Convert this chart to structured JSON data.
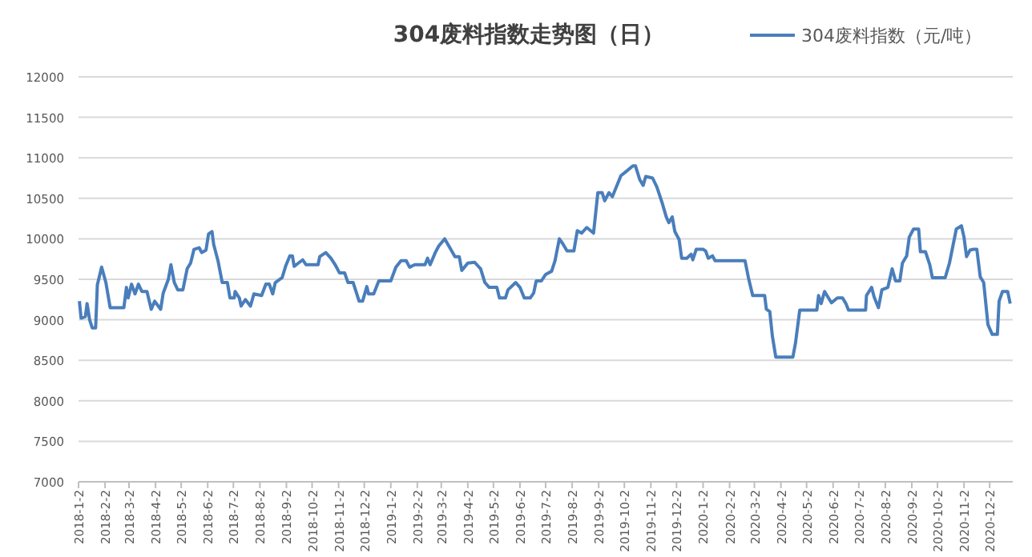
{
  "chart_data": {
    "type": "line",
    "title": "304废料指数走势图（日）",
    "x": [
      "2018-01-03",
      "2018-01-05",
      "2018-01-10",
      "2018-01-12",
      "2018-01-15",
      "2018-01-18",
      "2018-01-22",
      "2018-01-24",
      "2018-01-29",
      "2018-02-03",
      "2018-02-08",
      "2018-02-24",
      "2018-02-27",
      "2018-03-01",
      "2018-03-05",
      "2018-03-09",
      "2018-03-13",
      "2018-03-17",
      "2018-03-23",
      "2018-03-28",
      "2018-04-01",
      "2018-04-08",
      "2018-04-11",
      "2018-04-17",
      "2018-04-20",
      "2018-04-24",
      "2018-04-28",
      "2018-05-04",
      "2018-05-09",
      "2018-05-13",
      "2018-05-17",
      "2018-05-23",
      "2018-05-26",
      "2018-05-31",
      "2018-06-03",
      "2018-06-07",
      "2018-06-09",
      "2018-06-14",
      "2018-06-19",
      "2018-06-25",
      "2018-06-28",
      "2018-07-03",
      "2018-07-04",
      "2018-07-09",
      "2018-07-11",
      "2018-07-16",
      "2018-07-22",
      "2018-07-26",
      "2018-08-04",
      "2018-08-09",
      "2018-08-13",
      "2018-08-17",
      "2018-08-20",
      "2018-08-28",
      "2018-09-01",
      "2018-09-06",
      "2018-09-09",
      "2018-09-11",
      "2018-09-16",
      "2018-09-21",
      "2018-09-25",
      "2018-10-09",
      "2018-10-11",
      "2018-10-18",
      "2018-10-24",
      "2018-10-29",
      "2018-11-03",
      "2018-11-09",
      "2018-11-13",
      "2018-11-19",
      "2018-11-26",
      "2018-11-30",
      "2018-12-05",
      "2018-12-07",
      "2018-12-13",
      "2018-12-19",
      "2018-12-25",
      "2019-01-02",
      "2019-01-08",
      "2019-01-14",
      "2019-01-20",
      "2019-01-24",
      "2019-01-30",
      "2019-02-11",
      "2019-02-14",
      "2019-02-17",
      "2019-02-23",
      "2019-02-27",
      "2019-03-06",
      "2019-03-12",
      "2019-03-18",
      "2019-03-23",
      "2019-03-26",
      "2019-04-02",
      "2019-04-10",
      "2019-04-17",
      "2019-04-22",
      "2019-04-27",
      "2019-05-06",
      "2019-05-09",
      "2019-05-16",
      "2019-05-19",
      "2019-05-28",
      "2019-06-02",
      "2019-06-07",
      "2019-06-14",
      "2019-06-18",
      "2019-06-21",
      "2019-06-27",
      "2019-07-02",
      "2019-07-09",
      "2019-07-13",
      "2019-07-18",
      "2019-07-22",
      "2019-07-27",
      "2019-08-04",
      "2019-08-08",
      "2019-08-13",
      "2019-08-19",
      "2019-08-27",
      "2019-09-01",
      "2019-09-06",
      "2019-09-09",
      "2019-09-14",
      "2019-09-18",
      "2019-09-28",
      "2019-10-04",
      "2019-10-12",
      "2019-10-15",
      "2019-10-20",
      "2019-10-24",
      "2019-10-27",
      "2019-11-04",
      "2019-11-09",
      "2019-11-15",
      "2019-11-20",
      "2019-11-23",
      "2019-11-27",
      "2019-11-30",
      "2019-12-05",
      "2019-12-08",
      "2019-12-14",
      "2019-12-19",
      "2019-12-21",
      "2019-12-25",
      "2020-01-02",
      "2020-01-05",
      "2020-01-08",
      "2020-01-13",
      "2020-01-16",
      "2020-02-20",
      "2020-02-24",
      "2020-02-29",
      "2020-03-14",
      "2020-03-16",
      "2020-03-20",
      "2020-03-23",
      "2020-03-27",
      "2020-04-16",
      "2020-04-19",
      "2020-04-24",
      "2020-05-14",
      "2020-05-16",
      "2020-05-19",
      "2020-05-23",
      "2020-05-31",
      "2020-06-07",
      "2020-06-13",
      "2020-06-17",
      "2020-06-20",
      "2020-07-10",
      "2020-07-11",
      "2020-07-17",
      "2020-07-20",
      "2020-07-25",
      "2020-07-29",
      "2020-08-05",
      "2020-08-10",
      "2020-08-14",
      "2020-08-19",
      "2020-08-22",
      "2020-08-27",
      "2020-08-30",
      "2020-09-04",
      "2020-09-10",
      "2020-09-12",
      "2020-09-18",
      "2020-09-23",
      "2020-09-26",
      "2020-10-11",
      "2020-10-16",
      "2020-10-24",
      "2020-10-30",
      "2020-11-02",
      "2020-11-05",
      "2020-11-09",
      "2020-11-13",
      "2020-11-17",
      "2020-11-21",
      "2020-11-25",
      "2020-11-30",
      "2020-12-05",
      "2020-12-11",
      "2020-12-13",
      "2020-12-17",
      "2020-12-23",
      "2020-12-26"
    ],
    "series": [
      {
        "name": "304废料指数（元/吨）",
        "color": "#4a7ebb",
        "values": [
          9230,
          9020,
          9040,
          9200,
          9000,
          8900,
          8900,
          9430,
          9650,
          9460,
          9150,
          9150,
          9400,
          9270,
          9440,
          9320,
          9440,
          9350,
          9350,
          9130,
          9230,
          9130,
          9330,
          9500,
          9680,
          9460,
          9370,
          9370,
          9630,
          9700,
          9870,
          9890,
          9830,
          9860,
          10060,
          10090,
          9930,
          9730,
          9460,
          9460,
          9270,
          9270,
          9350,
          9270,
          9170,
          9250,
          9170,
          9320,
          9300,
          9440,
          9440,
          9320,
          9460,
          9520,
          9660,
          9790,
          9790,
          9660,
          9700,
          9740,
          9680,
          9680,
          9780,
          9830,
          9760,
          9680,
          9580,
          9580,
          9460,
          9460,
          9230,
          9230,
          9410,
          9320,
          9320,
          9480,
          9480,
          9480,
          9650,
          9730,
          9730,
          9650,
          9680,
          9680,
          9760,
          9680,
          9830,
          9910,
          10000,
          9890,
          9780,
          9780,
          9610,
          9700,
          9710,
          9630,
          9460,
          9400,
          9400,
          9270,
          9270,
          9370,
          9460,
          9400,
          9270,
          9270,
          9330,
          9480,
          9480,
          9560,
          9600,
          9730,
          10000,
          9940,
          9850,
          9850,
          10100,
          10070,
          10140,
          10070,
          10570,
          10570,
          10470,
          10570,
          10520,
          10780,
          10830,
          10900,
          10900,
          10730,
          10660,
          10770,
          10750,
          10640,
          10450,
          10270,
          10200,
          10270,
          10090,
          9990,
          9760,
          9760,
          9810,
          9740,
          9870,
          9870,
          9850,
          9760,
          9790,
          9730,
          9730,
          9520,
          9300,
          9300,
          9130,
          9100,
          8800,
          8540,
          8540,
          8710,
          9120,
          9120,
          9300,
          9200,
          9350,
          9210,
          9270,
          9270,
          9200,
          9120,
          9120,
          9300,
          9400,
          9280,
          9150,
          9370,
          9400,
          9630,
          9480,
          9480,
          9700,
          9790,
          10020,
          10120,
          10120,
          9840,
          9840,
          9680,
          9520,
          9520,
          9700,
          10120,
          10160,
          10020,
          9780,
          9860,
          9870,
          9870,
          9530,
          9460,
          8940,
          8820,
          8820,
          9230,
          9350,
          9350,
          9200
        ]
      }
    ],
    "xlim": [
      "2018-01-02",
      "2020-12-29"
    ],
    "xticks": [
      {
        "value": "2018-01-02",
        "label": "2018-1-2"
      },
      {
        "value": "2018-02-02",
        "label": "2018-2-2"
      },
      {
        "value": "2018-03-02",
        "label": "2018-3-2"
      },
      {
        "value": "2018-04-02",
        "label": "2018-4-2"
      },
      {
        "value": "2018-05-02",
        "label": "2018-5-2"
      },
      {
        "value": "2018-06-02",
        "label": "2018-6-2"
      },
      {
        "value": "2018-07-02",
        "label": "2018-7-2"
      },
      {
        "value": "2018-08-02",
        "label": "2018-8-2"
      },
      {
        "value": "2018-09-02",
        "label": "2018-9-2"
      },
      {
        "value": "2018-10-02",
        "label": "2018-10-2"
      },
      {
        "value": "2018-11-02",
        "label": "2018-11-2"
      },
      {
        "value": "2018-12-02",
        "label": "2018-12-2"
      },
      {
        "value": "2019-01-02",
        "label": "2019-1-2"
      },
      {
        "value": "2019-02-02",
        "label": "2019-2-2"
      },
      {
        "value": "2019-03-02",
        "label": "2019-3-2"
      },
      {
        "value": "2019-04-02",
        "label": "2019-4-2"
      },
      {
        "value": "2019-05-02",
        "label": "2019-5-2"
      },
      {
        "value": "2019-06-02",
        "label": "2019-6-2"
      },
      {
        "value": "2019-07-02",
        "label": "2019-7-2"
      },
      {
        "value": "2019-08-02",
        "label": "2019-8-2"
      },
      {
        "value": "2019-09-02",
        "label": "2019-9-2"
      },
      {
        "value": "2019-10-02",
        "label": "2019-10-2"
      },
      {
        "value": "2019-11-02",
        "label": "2019-11-2"
      },
      {
        "value": "2019-12-02",
        "label": "2019-12-2"
      },
      {
        "value": "2020-01-02",
        "label": "2020-1-2"
      },
      {
        "value": "2020-02-02",
        "label": "2020-2-2"
      },
      {
        "value": "2020-03-02",
        "label": "2020-3-2"
      },
      {
        "value": "2020-04-02",
        "label": "2020-4-2"
      },
      {
        "value": "2020-05-02",
        "label": "2020-5-2"
      },
      {
        "value": "2020-06-02",
        "label": "2020-6-2"
      },
      {
        "value": "2020-07-02",
        "label": "2020-7-2"
      },
      {
        "value": "2020-08-02",
        "label": "2020-8-2"
      },
      {
        "value": "2020-09-02",
        "label": "2020-9-2"
      },
      {
        "value": "2020-10-02",
        "label": "2020-10-2"
      },
      {
        "value": "2020-11-02",
        "label": "2020-11-2"
      },
      {
        "value": "2020-12-02",
        "label": "2020-12-2"
      }
    ],
    "ylim": [
      7000,
      12000
    ],
    "yticks": [
      7000,
      7500,
      8000,
      8500,
      9000,
      9500,
      10000,
      10500,
      11000,
      11500,
      12000
    ],
    "grid": "y",
    "legend": "top right"
  }
}
